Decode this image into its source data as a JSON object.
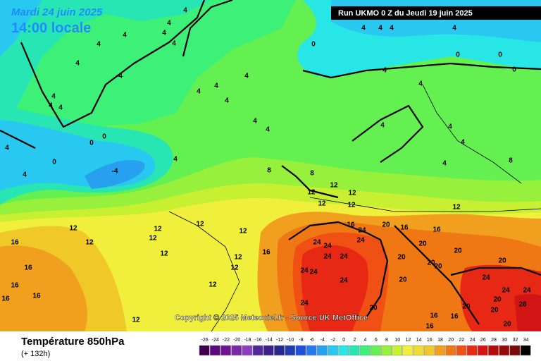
{
  "header": {
    "date": "Mardi 24 juin 2025",
    "time": "14:00 locale",
    "run": "Run UKMO 0 Z du Jeudi 19 juin 2025"
  },
  "copyright": "Copyright © 2025 Meteociel.fr - Source UK MetOffice",
  "footer": {
    "title": "Température 850hPa",
    "lead": "(+ 132h)"
  },
  "colorbar": {
    "ticks": [
      -26,
      -24,
      -22,
      -20,
      -18,
      -16,
      -14,
      -12,
      -10,
      -8,
      -6,
      -4,
      -2,
      0,
      2,
      4,
      6,
      8,
      10,
      12,
      14,
      16,
      18,
      20,
      22,
      24,
      26,
      28,
      30,
      32,
      34
    ],
    "colors": [
      "#3d0050",
      "#5a0a7a",
      "#6e1490",
      "#7a28a8",
      "#8c3cc0",
      "#50289a",
      "#3c1e8c",
      "#28288c",
      "#1e3cb4",
      "#1e50dc",
      "#2878f0",
      "#28a0f0",
      "#28c8f0",
      "#28e6e6",
      "#28e6b4",
      "#3cf078",
      "#64f050",
      "#96f03c",
      "#c8f032",
      "#f0f03c",
      "#f0dc32",
      "#f0c828",
      "#f0a01e",
      "#f07814",
      "#f05014",
      "#e62814",
      "#d21414",
      "#b40a0a",
      "#960a0a",
      "#780a0a",
      "#000000"
    ]
  },
  "contour_labels": [
    "4",
    "4",
    "4",
    "4",
    "4",
    "4",
    "4",
    "4",
    "4",
    "4",
    "4",
    "4",
    "4",
    "4",
    "4",
    "4",
    "4",
    "0",
    "4",
    "4",
    "4",
    "4",
    "4",
    "0",
    "0",
    "0",
    "4",
    "0",
    "0",
    "0",
    "4",
    "4",
    "-4",
    "4",
    "4",
    "4",
    "4",
    "4",
    "8",
    "8",
    "8",
    "12",
    "12",
    "12",
    "12",
    "12",
    "12",
    "12",
    "12",
    "12",
    "12",
    "12",
    "12",
    "12",
    "12",
    "12",
    "12",
    "12",
    "16",
    "16",
    "16",
    "16",
    "16",
    "16",
    "16",
    "24",
    "20",
    "16",
    "16",
    "24",
    "24",
    "24",
    "24",
    "24",
    "24",
    "24",
    "24",
    "20",
    "20",
    "20",
    "20",
    "20",
    "20",
    "20",
    "24",
    "24",
    "24",
    "20",
    "20",
    "20",
    "20",
    "20",
    "16",
    "16",
    "16",
    "24",
    "28"
  ]
}
